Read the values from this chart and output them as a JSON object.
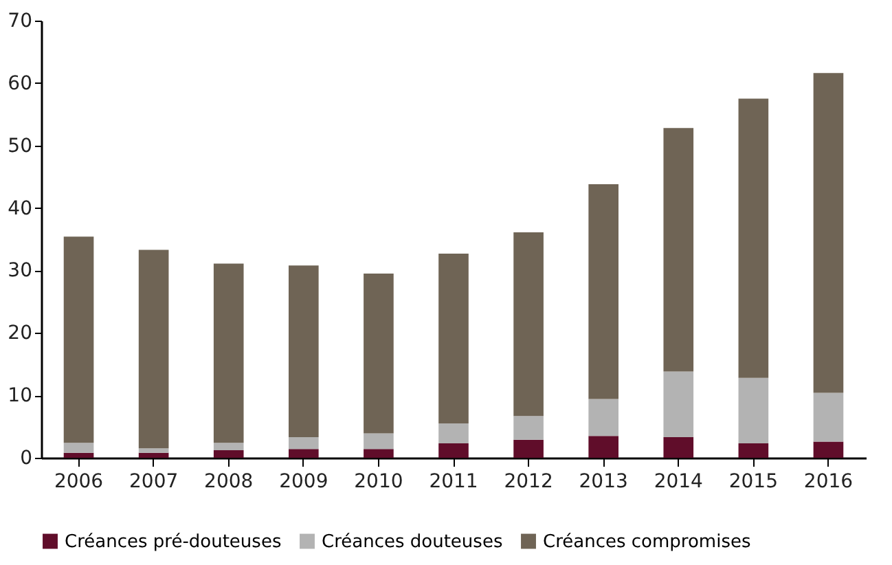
{
  "chart_data": {
    "type": "bar",
    "stacked": true,
    "categories": [
      "2006",
      "2007",
      "2008",
      "2009",
      "2010",
      "2011",
      "2012",
      "2013",
      "2014",
      "2015",
      "2016"
    ],
    "series": [
      {
        "name": "Créances pré-douteuses",
        "color": "#600d2a",
        "values": [
          0.8,
          0.8,
          1.2,
          1.4,
          1.4,
          2.3,
          2.9,
          3.5,
          3.3,
          2.3,
          2.6
        ]
      },
      {
        "name": "Créances douteuses",
        "color": "#b3b3b3",
        "values": [
          1.6,
          0.7,
          1.2,
          1.9,
          2.5,
          3.2,
          3.8,
          5.9,
          10.5,
          10.5,
          7.8
        ]
      },
      {
        "name": "Créances compromises",
        "color": "#6f6455",
        "values": [
          33.0,
          31.8,
          28.7,
          27.5,
          25.6,
          27.2,
          29.4,
          34.4,
          39.0,
          44.7,
          51.2
        ]
      }
    ],
    "ylim": [
      0,
      70
    ],
    "yticks": [
      0,
      10,
      20,
      30,
      40,
      50,
      60,
      70
    ],
    "grid": false,
    "legend": "bottom"
  }
}
